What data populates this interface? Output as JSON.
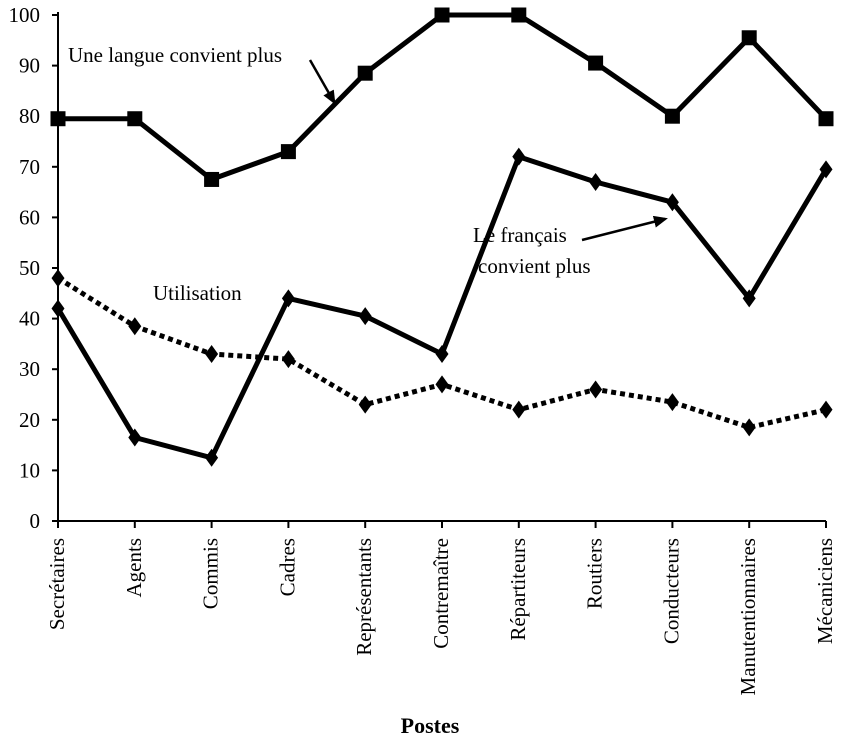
{
  "chart_data": {
    "type": "line",
    "categories": [
      "Secrétaires",
      "Agents",
      "Commis",
      "Cadres",
      "Représentants",
      "Contremaître",
      "Répartiteurs",
      "Routiers",
      "Conducteurs",
      "Manutentionnaires",
      "Mécaniciens"
    ],
    "ylim": [
      0,
      100
    ],
    "yticks": [
      0,
      10,
      20,
      30,
      40,
      50,
      60,
      70,
      80,
      90,
      100
    ],
    "xlabel": "Postes",
    "ylabel": "",
    "title": "",
    "grid": false,
    "legend": "none",
    "series": [
      {
        "label": "Une langue convient plus",
        "values": [
          79.5,
          79.5,
          67.5,
          73,
          88.5,
          100,
          100,
          90.5,
          80,
          95.5,
          79.5
        ],
        "marker": "square",
        "line_style": "solid",
        "color": "#000000"
      },
      {
        "label": "Le français convient plus",
        "values": [
          42,
          16.5,
          12.5,
          44,
          40.5,
          33,
          72,
          67,
          63,
          44,
          69.5
        ],
        "marker": "diamond",
        "line_style": "solid",
        "color": "#000000"
      },
      {
        "label": "Utilisation",
        "values": [
          48,
          38.5,
          33,
          32,
          23,
          27,
          22,
          26,
          23.5,
          18.5,
          22
        ],
        "marker": "diamond",
        "line_style": "dotted",
        "color": "#000000"
      }
    ],
    "annotations": [
      {
        "text": "Une langue convient plus",
        "series": 0,
        "arrow": true
      },
      {
        "text_lines": [
          "Le français",
          "convient plus"
        ],
        "series": 1,
        "arrow": true
      },
      {
        "text": "Utilisation",
        "series": 2,
        "arrow": false
      }
    ]
  }
}
